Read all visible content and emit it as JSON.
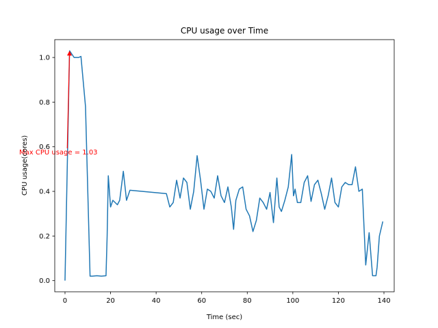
{
  "chart_data": {
    "type": "line",
    "title": "CPU usage over Time",
    "xlabel": "Time (sec)",
    "ylabel": "CPU usage(cores)",
    "xlim": [
      -4.5,
      144.5
    ],
    "ylim": [
      -0.05,
      1.08
    ],
    "xticks": [
      0,
      20,
      40,
      60,
      80,
      100,
      120,
      140
    ],
    "yticks": [
      0.0,
      0.2,
      0.4,
      0.6,
      0.8,
      1.0
    ],
    "ytick_labels": [
      "0.0",
      "0.2",
      "0.4",
      "0.6",
      "0.8",
      "1.0"
    ],
    "grid": false,
    "series": [
      {
        "name": "CPU usage",
        "color": "#1f77b4",
        "x": [
          0,
          2,
          4,
          6,
          7,
          9,
          11,
          12,
          14,
          16,
          18,
          18.5,
          19,
          20,
          21,
          23,
          24,
          25.6,
          27,
          28.5,
          44.5,
          46,
          47.5,
          49,
          50.5,
          52,
          53.5,
          55,
          56.5,
          58,
          59.5,
          61,
          62.5,
          64,
          65.5,
          67,
          68.5,
          70,
          71.5,
          73,
          74,
          75,
          76.5,
          78,
          79.5,
          81,
          82.5,
          84,
          85.5,
          87,
          88.5,
          90,
          91.5,
          93,
          94,
          95,
          96.5,
          98,
          99.5,
          100.3,
          101,
          102,
          103.5,
          105,
          106.5,
          108,
          109.5,
          111,
          112.5,
          114,
          115.5,
          117,
          118.5,
          120,
          121.5,
          123,
          124.5,
          126,
          127.5,
          129,
          130.5,
          132,
          133.5,
          135,
          136.5,
          137,
          138,
          139.5
        ],
        "values": [
          0.0,
          1.03,
          1.0,
          1.0,
          1.005,
          0.78,
          0.02,
          0.02,
          0.022,
          0.02,
          0.022,
          0.2,
          0.47,
          0.33,
          0.36,
          0.34,
          0.36,
          0.49,
          0.36,
          0.405,
          0.39,
          0.33,
          0.35,
          0.45,
          0.37,
          0.46,
          0.44,
          0.32,
          0.4,
          0.56,
          0.45,
          0.32,
          0.41,
          0.4,
          0.37,
          0.47,
          0.38,
          0.35,
          0.42,
          0.33,
          0.23,
          0.36,
          0.41,
          0.42,
          0.32,
          0.29,
          0.22,
          0.27,
          0.37,
          0.35,
          0.32,
          0.395,
          0.26,
          0.46,
          0.33,
          0.31,
          0.36,
          0.42,
          0.565,
          0.38,
          0.41,
          0.35,
          0.35,
          0.44,
          0.47,
          0.355,
          0.43,
          0.45,
          0.39,
          0.32,
          0.38,
          0.46,
          0.35,
          0.33,
          0.42,
          0.44,
          0.43,
          0.43,
          0.51,
          0.4,
          0.41,
          0.07,
          0.215,
          0.022,
          0.022,
          0.06,
          0.2,
          0.265
        ]
      }
    ],
    "annotations": [
      {
        "text": "Max CPU usage = 1.03",
        "color": "#ff0000",
        "xy": [
          2,
          1.03
        ],
        "xytext": [
          1,
          0.55
        ]
      }
    ]
  }
}
